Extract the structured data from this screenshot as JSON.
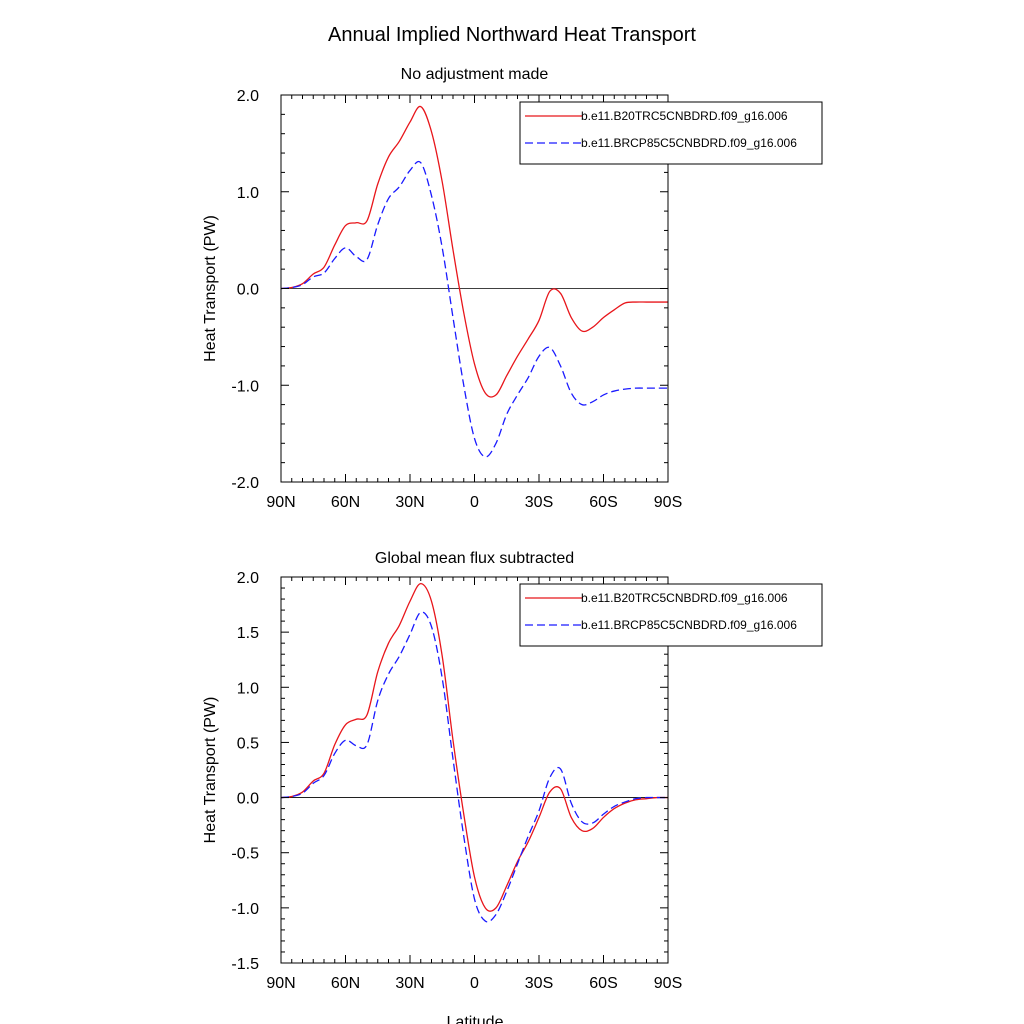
{
  "figure": {
    "title": "Annual Implied Northward Heat Transport",
    "xlabel": "Latitude"
  },
  "chart_data": [
    {
      "type": "line",
      "title": "No adjustment made",
      "xlabel": "",
      "ylabel": "Heat Transport (PW)",
      "xlim": [
        90,
        -90
      ],
      "ylim": [
        -2.0,
        2.0
      ],
      "x_ticks": [
        90,
        60,
        30,
        0,
        -30,
        -60,
        -90
      ],
      "x_tick_labels": [
        "90N",
        "60N",
        "30N",
        "0",
        "30S",
        "60S",
        "90S"
      ],
      "y_ticks": [
        2.0,
        1.0,
        0.0,
        -1.0,
        -2.0
      ],
      "y_tick_labels": [
        "2.0",
        "1.0",
        "0.0",
        "-1.0",
        "-2.0"
      ],
      "zero_line": true,
      "grid": false,
      "legend_position": "top-right",
      "series": [
        {
          "name": "b.e11.B20TRC5CNBDRD.f09_g16.006",
          "color": "#e8161b",
          "dash": "solid",
          "x": [
            90,
            85,
            80,
            75,
            70,
            65,
            60,
            55,
            50,
            45,
            40,
            35,
            30,
            25,
            20,
            15,
            10,
            5,
            0,
            -5,
            -10,
            -15,
            -20,
            -25,
            -30,
            -35,
            -40,
            -45,
            -50,
            -55,
            -60,
            -65,
            -70,
            -75,
            -80,
            -85,
            -90
          ],
          "y": [
            0.0,
            0.01,
            0.05,
            0.15,
            0.22,
            0.45,
            0.65,
            0.68,
            0.7,
            1.08,
            1.36,
            1.52,
            1.72,
            1.88,
            1.62,
            1.1,
            0.4,
            -0.25,
            -0.78,
            -1.08,
            -1.1,
            -0.9,
            -0.7,
            -0.52,
            -0.33,
            -0.03,
            -0.05,
            -0.3,
            -0.44,
            -0.4,
            -0.3,
            -0.22,
            -0.15,
            -0.14,
            -0.14,
            -0.14,
            -0.14
          ]
        },
        {
          "name": "b.e11.BRCP85C5CNBDRD.f09_g16.006",
          "color": "#1a1aff",
          "dash": "dashed",
          "x": [
            90,
            85,
            80,
            75,
            70,
            65,
            60,
            55,
            50,
            45,
            40,
            35,
            30,
            25,
            20,
            15,
            10,
            5,
            0,
            -5,
            -10,
            -15,
            -20,
            -25,
            -30,
            -35,
            -40,
            -45,
            -50,
            -55,
            -60,
            -65,
            -70,
            -75,
            -80,
            -85,
            -90
          ],
          "y": [
            0.0,
            0.01,
            0.04,
            0.12,
            0.16,
            0.31,
            0.42,
            0.33,
            0.3,
            0.66,
            0.93,
            1.05,
            1.22,
            1.3,
            0.96,
            0.42,
            -0.3,
            -1.0,
            -1.55,
            -1.74,
            -1.6,
            -1.3,
            -1.1,
            -0.92,
            -0.7,
            -0.61,
            -0.8,
            -1.08,
            -1.2,
            -1.17,
            -1.1,
            -1.06,
            -1.04,
            -1.03,
            -1.03,
            -1.03,
            -1.03
          ]
        }
      ]
    },
    {
      "type": "line",
      "title": "Global mean flux subtracted",
      "xlabel": "Latitude",
      "ylabel": "Heat Transport (PW)",
      "xlim": [
        90,
        -90
      ],
      "ylim": [
        -1.5,
        2.0
      ],
      "x_ticks": [
        90,
        60,
        30,
        0,
        -30,
        -60,
        -90
      ],
      "x_tick_labels": [
        "90N",
        "60N",
        "30N",
        "0",
        "30S",
        "60S",
        "90S"
      ],
      "y_ticks": [
        2.0,
        1.5,
        1.0,
        0.5,
        0.0,
        -0.5,
        -1.0,
        -1.5
      ],
      "y_tick_labels": [
        "2.0",
        "1.5",
        "1.0",
        "0.5",
        "0.0",
        "-0.5",
        "-1.0",
        "-1.5"
      ],
      "zero_line": true,
      "grid": false,
      "legend_position": "top-right",
      "series": [
        {
          "name": "b.e11.B20TRC5CNBDRD.f09_g16.006",
          "color": "#e8161b",
          "dash": "solid",
          "x": [
            90,
            85,
            80,
            75,
            70,
            65,
            60,
            55,
            50,
            45,
            40,
            35,
            30,
            25,
            20,
            15,
            10,
            5,
            0,
            -5,
            -10,
            -15,
            -20,
            -25,
            -30,
            -35,
            -40,
            -45,
            -50,
            -55,
            -60,
            -65,
            -70,
            -75,
            -80,
            -85,
            -90
          ],
          "y": [
            0.0,
            0.01,
            0.05,
            0.15,
            0.22,
            0.48,
            0.66,
            0.71,
            0.75,
            1.14,
            1.4,
            1.56,
            1.78,
            1.94,
            1.78,
            1.28,
            0.52,
            -0.15,
            -0.72,
            -1.0,
            -1.0,
            -0.8,
            -0.58,
            -0.4,
            -0.18,
            0.05,
            0.08,
            -0.18,
            -0.3,
            -0.28,
            -0.18,
            -0.1,
            -0.05,
            -0.02,
            -0.01,
            0.0,
            0.0
          ]
        },
        {
          "name": "b.e11.BRCP85C5CNBDRD.f09_g16.006",
          "color": "#1a1aff",
          "dash": "dashed",
          "x": [
            90,
            85,
            80,
            75,
            70,
            65,
            60,
            55,
            50,
            45,
            40,
            35,
            30,
            25,
            20,
            15,
            10,
            5,
            0,
            -5,
            -10,
            -15,
            -20,
            -25,
            -30,
            -35,
            -40,
            -45,
            -50,
            -55,
            -60,
            -65,
            -70,
            -75,
            -80,
            -85,
            -90
          ],
          "y": [
            0.0,
            0.01,
            0.04,
            0.13,
            0.2,
            0.4,
            0.52,
            0.47,
            0.48,
            0.88,
            1.12,
            1.28,
            1.48,
            1.68,
            1.55,
            1.08,
            0.35,
            -0.35,
            -0.92,
            -1.12,
            -1.06,
            -0.85,
            -0.6,
            -0.35,
            -0.12,
            0.18,
            0.26,
            -0.05,
            -0.22,
            -0.23,
            -0.15,
            -0.08,
            -0.04,
            -0.01,
            0.0,
            0.0,
            0.0
          ]
        }
      ]
    }
  ]
}
